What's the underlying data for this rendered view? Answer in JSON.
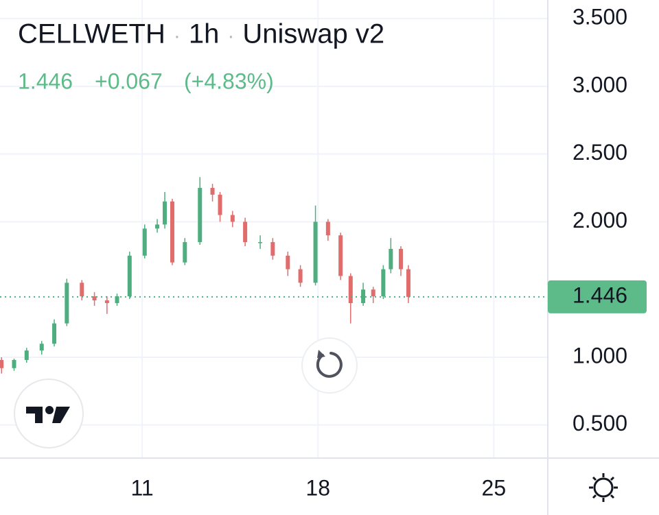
{
  "chart_data": {
    "type": "candlestick",
    "symbol": "CELLWETH",
    "interval": "1h",
    "exchange": "Uniswap v2",
    "last_price": 1.446,
    "change": {
      "value": 0.067,
      "label": "+0.067"
    },
    "change_percent": {
      "value": 4.83,
      "label": "(+4.83%)"
    },
    "x": [
      5.4,
      5.9,
      6.4,
      7.0,
      7.5,
      8.0,
      8.6,
      9.1,
      9.6,
      10.0,
      10.5,
      11.1,
      11.6,
      11.9,
      12.2,
      12.7,
      13.3,
      13.8,
      14.1,
      14.6,
      15.1,
      15.7,
      16.2,
      16.8,
      17.3,
      17.9,
      18.4,
      18.9,
      19.3,
      19.8,
      20.2,
      20.6,
      20.9,
      21.3,
      21.6
    ],
    "open": [
      0.98,
      0.92,
      0.98,
      1.05,
      1.1,
      1.25,
      1.55,
      1.45,
      1.42,
      1.4,
      1.45,
      1.75,
      1.95,
      1.98,
      2.15,
      1.7,
      1.85,
      2.25,
      2.2,
      2.05,
      2.0,
      1.85,
      1.85,
      1.75,
      1.65,
      1.55,
      2.0,
      1.9,
      1.6,
      1.4,
      1.5,
      1.45,
      1.65,
      1.8,
      1.65
    ],
    "high": [
      1.0,
      0.99,
      1.07,
      1.12,
      1.28,
      1.58,
      1.57,
      1.48,
      1.45,
      1.47,
      1.78,
      1.98,
      2.02,
      2.22,
      2.17,
      1.88,
      2.33,
      2.28,
      2.22,
      2.08,
      2.03,
      1.9,
      1.88,
      1.78,
      1.68,
      2.12,
      2.02,
      1.92,
      1.62,
      1.55,
      1.52,
      1.68,
      1.88,
      1.82,
      1.68
    ],
    "low": [
      0.88,
      0.9,
      0.96,
      1.02,
      1.08,
      1.23,
      1.42,
      1.38,
      1.32,
      1.38,
      1.43,
      1.73,
      1.92,
      1.95,
      1.68,
      1.68,
      1.83,
      2.15,
      2.0,
      1.96,
      1.82,
      1.8,
      1.72,
      1.6,
      1.52,
      1.53,
      1.86,
      1.57,
      1.25,
      1.38,
      1.4,
      1.43,
      1.62,
      1.6,
      1.4
    ],
    "close": [
      0.92,
      0.98,
      1.05,
      1.1,
      1.25,
      1.55,
      1.45,
      1.42,
      1.4,
      1.45,
      1.75,
      1.95,
      1.98,
      2.15,
      1.7,
      1.85,
      2.25,
      2.2,
      2.05,
      2.0,
      1.85,
      1.85,
      1.75,
      1.65,
      1.55,
      2.0,
      1.9,
      1.6,
      1.4,
      1.5,
      1.45,
      1.65,
      1.8,
      1.65,
      1.446
    ],
    "up_color": "#4fae7f",
    "down_color": "#e06c6c",
    "xlim": [
      5.34,
      27.15
    ],
    "xticks": [
      11,
      18,
      25
    ],
    "ylim": [
      0.256,
      3.637
    ],
    "yticks": [
      {
        "value": 0.5,
        "label": "0.500"
      },
      {
        "value": 1,
        "label": "1.000"
      },
      {
        "value": 2,
        "label": "2.000"
      },
      {
        "value": 2.5,
        "label": "2.500"
      },
      {
        "value": 3,
        "label": "3.000"
      },
      {
        "value": 3.5,
        "label": "3.500"
      }
    ],
    "grid": true
  }
}
